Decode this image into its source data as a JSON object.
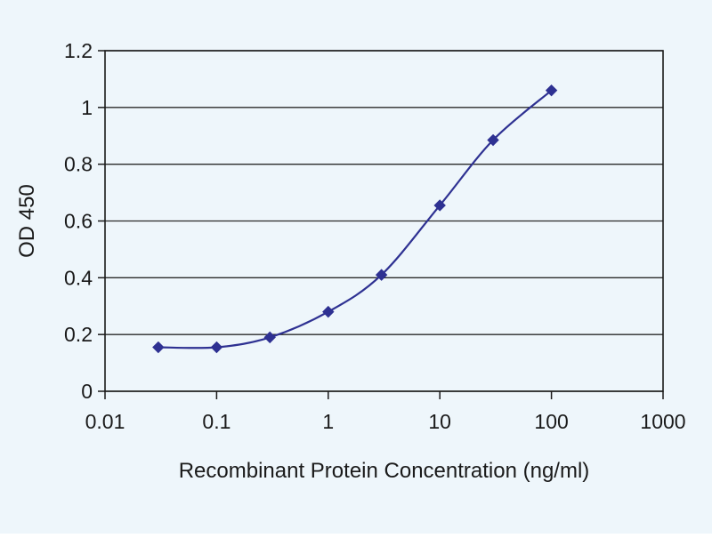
{
  "page": {
    "background_color": "#eef6fb",
    "plot_background_color": "#eef6fb",
    "border_color": "#1a1a1a",
    "grid_color": "#2a2a2a",
    "text_color": "#1a1a1a"
  },
  "chart_data": {
    "type": "line",
    "title": "",
    "xlabel": "Recombinant Protein Concentration (ng/ml)",
    "ylabel": "OD 450",
    "x_scale": "log",
    "xlim": [
      0.01,
      1000
    ],
    "ylim": [
      0,
      1.2
    ],
    "x_ticks": [
      0.01,
      0.1,
      1,
      10,
      100,
      1000
    ],
    "x_tick_labels": [
      "0.01",
      "0.1",
      "1",
      "10",
      "100",
      "1000"
    ],
    "y_ticks": [
      0,
      0.2,
      0.4,
      0.6,
      0.8,
      1,
      1.2
    ],
    "y_tick_labels": [
      "0",
      "0.2",
      "0.4",
      "0.6",
      "0.8",
      "1",
      "1.2"
    ],
    "grid": "horizontal",
    "legend_position": "none",
    "x": [
      0.03,
      0.1,
      0.3,
      1,
      3,
      10,
      30,
      100
    ],
    "series": [
      {
        "name": "OD 450",
        "values": [
          0.155,
          0.155,
          0.19,
          0.28,
          0.41,
          0.655,
          0.885,
          1.06
        ],
        "color": "#2e3192",
        "marker": "diamond"
      }
    ]
  }
}
